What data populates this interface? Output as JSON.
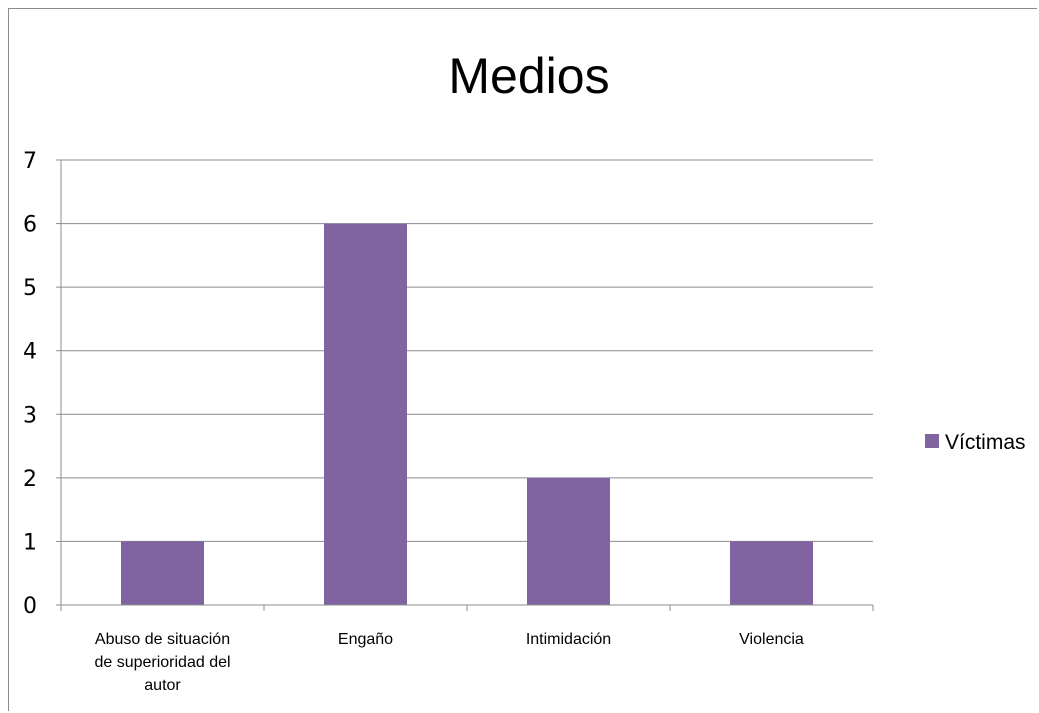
{
  "chart_data": {
    "type": "bar",
    "title": "Medios",
    "categories": [
      [
        "Abuso de situación",
        "de superioridad del",
        "autor"
      ],
      [
        "Engaño"
      ],
      [
        "Intimidación"
      ],
      [
        "Violencia"
      ]
    ],
    "series": [
      {
        "name": "Víctimas",
        "values": [
          1,
          6,
          2,
          1
        ],
        "color": "#8064a2"
      }
    ],
    "ylim": [
      0,
      7
    ],
    "yticks": [
      "0",
      "1",
      "2",
      "3",
      "4",
      "5",
      "6",
      "7"
    ],
    "grid": true,
    "legend": "right"
  }
}
